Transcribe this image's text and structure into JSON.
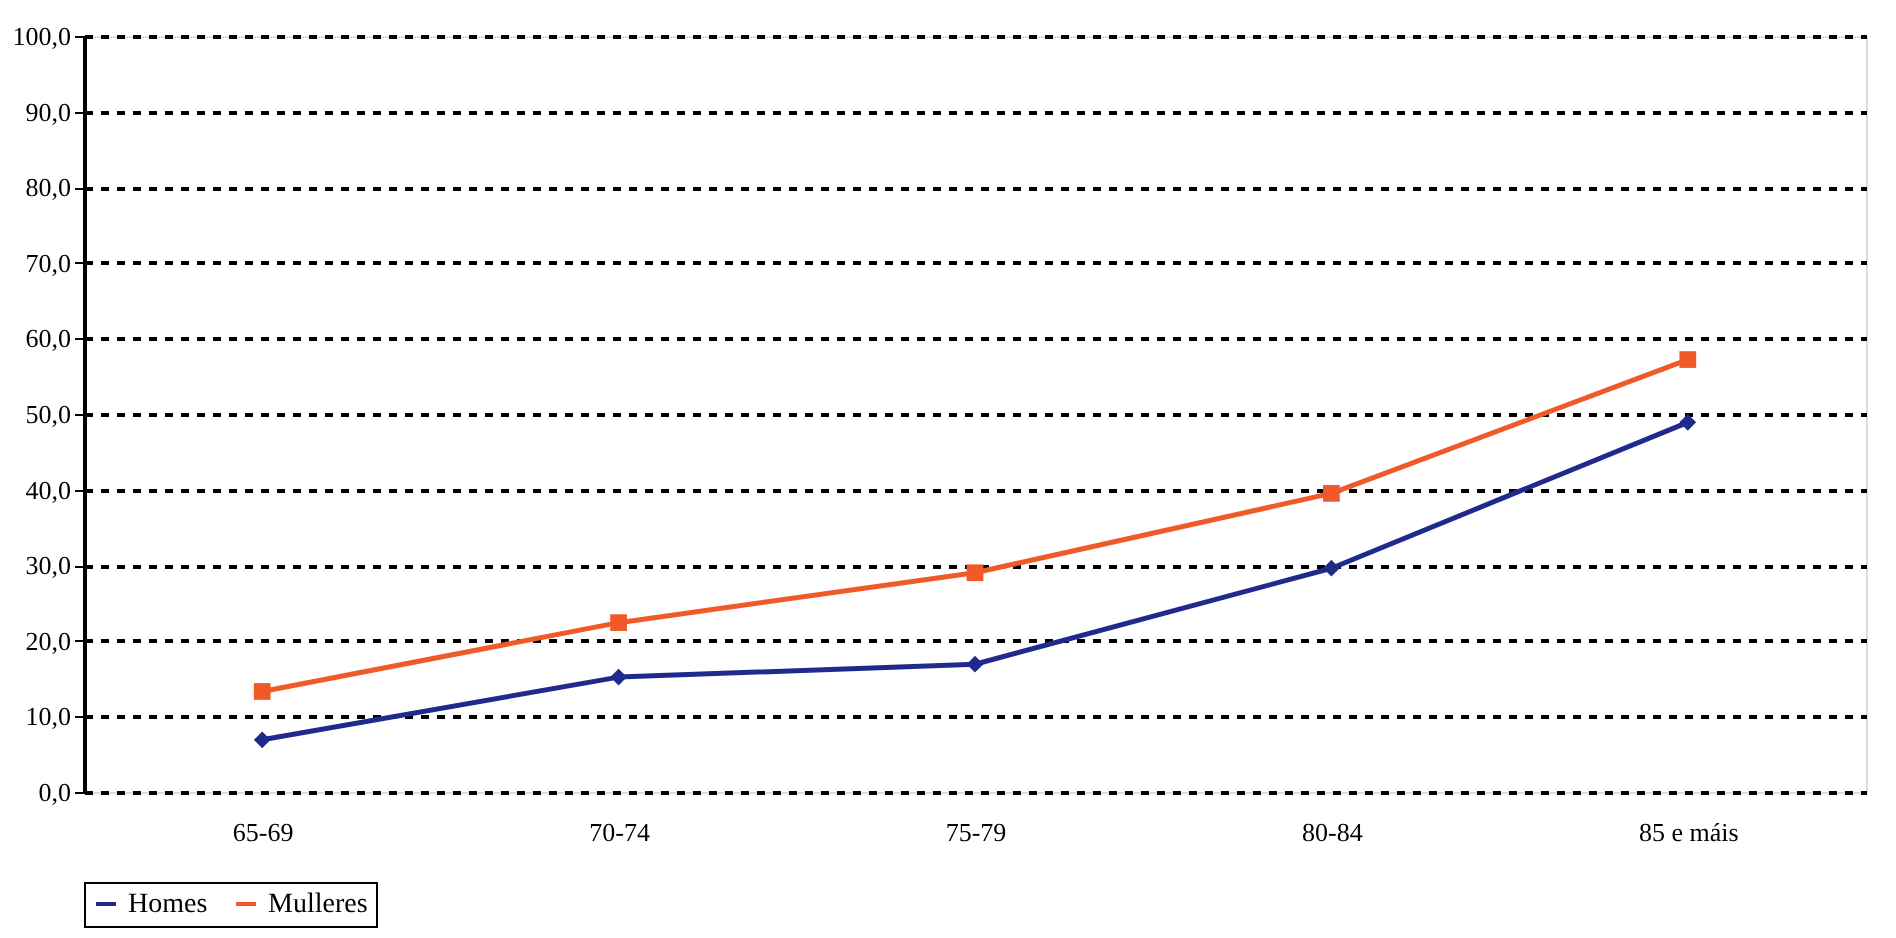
{
  "chart_data": {
    "type": "line",
    "categories": [
      "65-69",
      "70-74",
      "75-79",
      "80-84",
      "85 e máis"
    ],
    "series": [
      {
        "name": "Homes",
        "color": "#1f2a8c",
        "marker": "diamond",
        "values": [
          6.9,
          15.2,
          16.9,
          29.6,
          48.9
        ]
      },
      {
        "name": "Mulleres",
        "color": "#f05a28",
        "marker": "square",
        "values": [
          13.3,
          22.4,
          29.0,
          39.5,
          57.2
        ]
      }
    ],
    "ylim": [
      0,
      100
    ],
    "yticks": [
      {
        "value": 0,
        "label": "0,0"
      },
      {
        "value": 10,
        "label": "10,0"
      },
      {
        "value": 20,
        "label": "20,0"
      },
      {
        "value": 30,
        "label": "30,0"
      },
      {
        "value": 40,
        "label": "40,0"
      },
      {
        "value": 50,
        "label": "50,0"
      },
      {
        "value": 60,
        "label": "60,0"
      },
      {
        "value": 70,
        "label": "70,0"
      },
      {
        "value": 80,
        "label": "80,0"
      },
      {
        "value": 90,
        "label": "90,0"
      },
      {
        "value": 100,
        "label": "100,0"
      }
    ],
    "grid": "y",
    "legend": "bottom",
    "line_style": "solid"
  }
}
